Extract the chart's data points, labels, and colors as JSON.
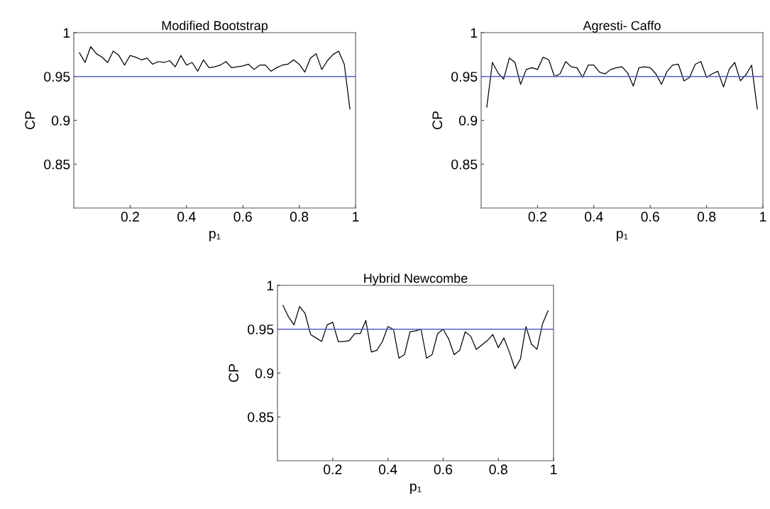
{
  "chart_data": [
    {
      "type": "line",
      "title": "Modified Bootstrap",
      "xlabel": "p₁",
      "ylabel": "CP",
      "x": [
        0.02,
        0.04,
        0.06,
        0.08,
        0.1,
        0.12,
        0.14,
        0.16,
        0.18,
        0.2,
        0.22,
        0.24,
        0.26,
        0.28,
        0.3,
        0.32,
        0.34,
        0.36,
        0.38,
        0.4,
        0.42,
        0.44,
        0.46,
        0.48,
        0.5,
        0.52,
        0.54,
        0.56,
        0.58,
        0.6,
        0.62,
        0.64,
        0.66,
        0.68,
        0.7,
        0.72,
        0.74,
        0.76,
        0.78,
        0.8,
        0.82,
        0.84,
        0.86,
        0.88,
        0.9,
        0.92,
        0.94,
        0.96,
        0.98
      ],
      "series": [
        {
          "color": "#000000",
          "values": [
            0.977,
            0.966,
            0.984,
            0.976,
            0.972,
            0.966,
            0.979,
            0.974,
            0.963,
            0.974,
            0.972,
            0.969,
            0.971,
            0.964,
            0.967,
            0.966,
            0.968,
            0.961,
            0.974,
            0.963,
            0.966,
            0.956,
            0.969,
            0.96,
            0.961,
            0.963,
            0.967,
            0.96,
            0.961,
            0.962,
            0.964,
            0.958,
            0.963,
            0.963,
            0.956,
            0.96,
            0.963,
            0.964,
            0.969,
            0.964,
            0.955,
            0.971,
            0.976,
            0.958,
            0.968,
            0.975,
            0.979,
            0.964,
            0.913
          ]
        }
      ],
      "xlim": [
        0,
        1
      ],
      "ylim": [
        0.8,
        1
      ],
      "xticks": [
        0.2,
        0.4,
        0.6,
        0.8,
        1
      ],
      "yticks": [
        0.85,
        0.9,
        0.95,
        1
      ],
      "ref_lines": [
        {
          "axis": "y",
          "value": 0.95,
          "color": "#5a5fc8"
        }
      ]
    },
    {
      "type": "line",
      "title": "Agresti- Caffo",
      "xlabel": "p₁",
      "ylabel": "CP",
      "x": [
        0.02,
        0.04,
        0.06,
        0.08,
        0.1,
        0.12,
        0.14,
        0.16,
        0.18,
        0.2,
        0.22,
        0.24,
        0.26,
        0.28,
        0.3,
        0.32,
        0.34,
        0.36,
        0.38,
        0.4,
        0.42,
        0.44,
        0.46,
        0.48,
        0.5,
        0.52,
        0.54,
        0.56,
        0.58,
        0.6,
        0.62,
        0.64,
        0.66,
        0.68,
        0.7,
        0.72,
        0.74,
        0.76,
        0.78,
        0.8,
        0.82,
        0.84,
        0.86,
        0.88,
        0.9,
        0.92,
        0.94,
        0.96,
        0.98
      ],
      "series": [
        {
          "color": "#000000",
          "values": [
            0.915,
            0.966,
            0.954,
            0.947,
            0.971,
            0.966,
            0.941,
            0.958,
            0.96,
            0.958,
            0.972,
            0.969,
            0.95,
            0.953,
            0.967,
            0.961,
            0.96,
            0.949,
            0.963,
            0.963,
            0.955,
            0.953,
            0.958,
            0.96,
            0.961,
            0.954,
            0.939,
            0.96,
            0.961,
            0.96,
            0.953,
            0.941,
            0.956,
            0.963,
            0.964,
            0.945,
            0.949,
            0.964,
            0.967,
            0.949,
            0.953,
            0.956,
            0.938,
            0.958,
            0.966,
            0.945,
            0.952,
            0.963,
            0.913
          ]
        }
      ],
      "xlim": [
        0,
        1
      ],
      "ylim": [
        0.8,
        1
      ],
      "xticks": [
        0.2,
        0.4,
        0.6,
        0.8,
        1
      ],
      "yticks": [
        0.85,
        0.9,
        0.95,
        1
      ],
      "ref_lines": [
        {
          "axis": "y",
          "value": 0.95,
          "color": "#5a5fc8"
        }
      ]
    },
    {
      "type": "line",
      "title": "Hybrid Newcombe",
      "xlabel": "p₁",
      "ylabel": "CP",
      "x": [
        0.02,
        0.04,
        0.06,
        0.08,
        0.1,
        0.12,
        0.14,
        0.16,
        0.18,
        0.2,
        0.22,
        0.24,
        0.26,
        0.28,
        0.3,
        0.32,
        0.34,
        0.36,
        0.38,
        0.4,
        0.42,
        0.44,
        0.46,
        0.48,
        0.5,
        0.52,
        0.54,
        0.56,
        0.58,
        0.6,
        0.62,
        0.64,
        0.66,
        0.68,
        0.7,
        0.72,
        0.74,
        0.76,
        0.78,
        0.8,
        0.82,
        0.84,
        0.86,
        0.88,
        0.9,
        0.92,
        0.94,
        0.96,
        0.98
      ],
      "series": [
        {
          "color": "#000000",
          "values": [
            0.977,
            0.964,
            0.955,
            0.976,
            0.968,
            0.944,
            0.94,
            0.936,
            0.955,
            0.958,
            0.936,
            0.936,
            0.937,
            0.945,
            0.945,
            0.96,
            0.924,
            0.926,
            0.936,
            0.953,
            0.95,
            0.917,
            0.921,
            0.947,
            0.948,
            0.95,
            0.917,
            0.921,
            0.945,
            0.95,
            0.939,
            0.921,
            0.926,
            0.947,
            0.942,
            0.927,
            0.932,
            0.937,
            0.944,
            0.929,
            0.94,
            0.924,
            0.905,
            0.916,
            0.953,
            0.933,
            0.927,
            0.956,
            0.971
          ]
        }
      ],
      "xlim": [
        0,
        1
      ],
      "ylim": [
        0.8,
        1
      ],
      "xticks": [
        0.2,
        0.4,
        0.6,
        0.8,
        1
      ],
      "yticks": [
        0.85,
        0.9,
        0.95,
        1
      ],
      "ref_lines": [
        {
          "axis": "y",
          "value": 0.95,
          "color": "#5a5fc8"
        }
      ]
    }
  ]
}
